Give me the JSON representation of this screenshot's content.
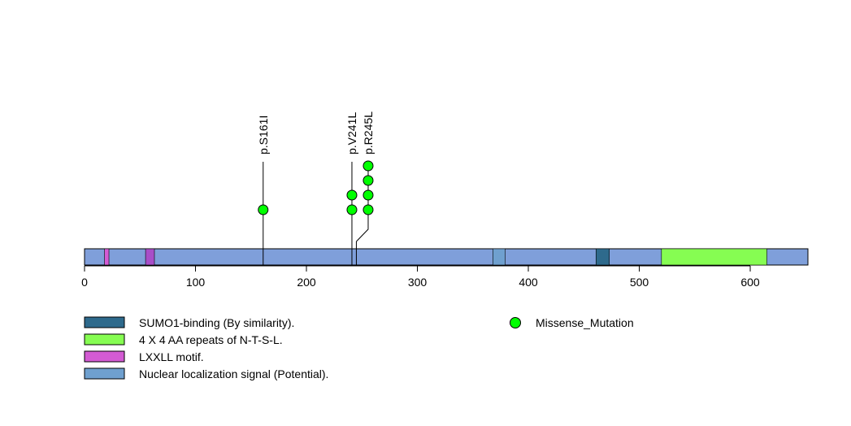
{
  "chart_data": {
    "type": "lollipop",
    "protein_length": 652,
    "x_axis": {
      "range": [
        0,
        652
      ],
      "ticks": [
        0,
        100,
        200,
        300,
        400,
        500,
        600
      ],
      "tick_labels": [
        "0",
        "100",
        "200",
        "300",
        "400",
        "500",
        "600"
      ]
    },
    "domains": [
      {
        "name": "LXXLL motif.",
        "start": 18,
        "end": 22,
        "color": "#d35bd3"
      },
      {
        "name": "LXXLL motif.",
        "start": 55,
        "end": 63,
        "color": "#a84ec8"
      },
      {
        "name": "Nuclear localization signal (Potential).",
        "start": 368,
        "end": 379,
        "color": "#6fa0cf"
      },
      {
        "name": "SUMO1-binding (By similarity).",
        "start": 461,
        "end": 473,
        "color": "#2e6a8c"
      },
      {
        "name": "4 X 4 AA repeats of N-T-S-L.",
        "start": 520,
        "end": 615,
        "color": "#86fd52"
      }
    ],
    "backbone_color": "#7f9fda",
    "mutations": [
      {
        "label": "p.S161I",
        "position": 161,
        "count": 1,
        "type": "Missense_Mutation"
      },
      {
        "label": "p.V241L",
        "position": 241,
        "count": 2,
        "type": "Missense_Mutation"
      },
      {
        "label": "p.R245L",
        "position": 245,
        "count": 4,
        "type": "Missense_Mutation"
      }
    ],
    "legend": {
      "domains": [
        {
          "label": "SUMO1-binding (By similarity).",
          "color": "#2e6a8c"
        },
        {
          "label": "4 X 4 AA repeats of N-T-S-L.",
          "color": "#86fd52"
        },
        {
          "label": "LXXLL motif.",
          "color": "#d35bd3"
        },
        {
          "label": "Nuclear localization signal (Potential).",
          "color": "#6fa0cf"
        }
      ],
      "mutation_types": [
        {
          "label": "Missense_Mutation",
          "color": "#00ff00"
        }
      ]
    }
  }
}
